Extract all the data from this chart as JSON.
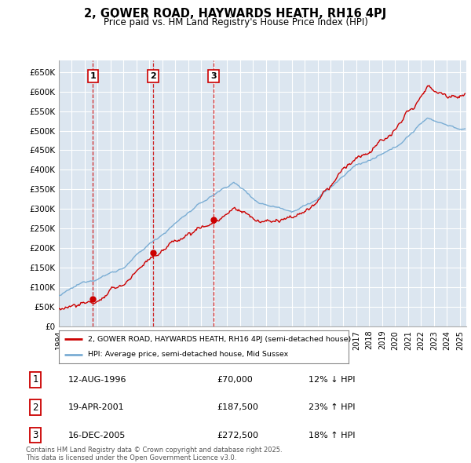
{
  "title": "2, GOWER ROAD, HAYWARDS HEATH, RH16 4PJ",
  "subtitle": "Price paid vs. HM Land Registry's House Price Index (HPI)",
  "xlim_start": 1994.0,
  "xlim_end": 2025.5,
  "ylim": [
    0,
    680000
  ],
  "yticks": [
    0,
    50000,
    100000,
    150000,
    200000,
    250000,
    300000,
    350000,
    400000,
    450000,
    500000,
    550000,
    600000,
    650000
  ],
  "ytick_labels": [
    "£0",
    "£50K",
    "£100K",
    "£150K",
    "£200K",
    "£250K",
    "£300K",
    "£350K",
    "£400K",
    "£450K",
    "£500K",
    "£550K",
    "£600K",
    "£650K"
  ],
  "legend_line1": "2, GOWER ROAD, HAYWARDS HEATH, RH16 4PJ (semi-detached house)",
  "legend_line2": "HPI: Average price, semi-detached house, Mid Sussex",
  "sale1_date": "12-AUG-1996",
  "sale1_price": "£70,000",
  "sale1_hpi": "12% ↓ HPI",
  "sale2_date": "19-APR-2001",
  "sale2_price": "£187,500",
  "sale2_hpi": "23% ↑ HPI",
  "sale3_date": "16-DEC-2005",
  "sale3_price": "£272,500",
  "sale3_hpi": "18% ↑ HPI",
  "footnote": "Contains HM Land Registry data © Crown copyright and database right 2025.\nThis data is licensed under the Open Government Licence v3.0.",
  "sale_color": "#cc0000",
  "hpi_color": "#7aadd4",
  "background_color": "#ffffff",
  "plot_bg_color": "#dce6f0",
  "grid_color": "#ffffff",
  "vline_color": "#cc0000",
  "marker_color": "#cc0000",
  "sale_dates": [
    1996.625,
    2001.292,
    2005.958
  ],
  "sale_prices": [
    70000,
    187500,
    272500
  ]
}
